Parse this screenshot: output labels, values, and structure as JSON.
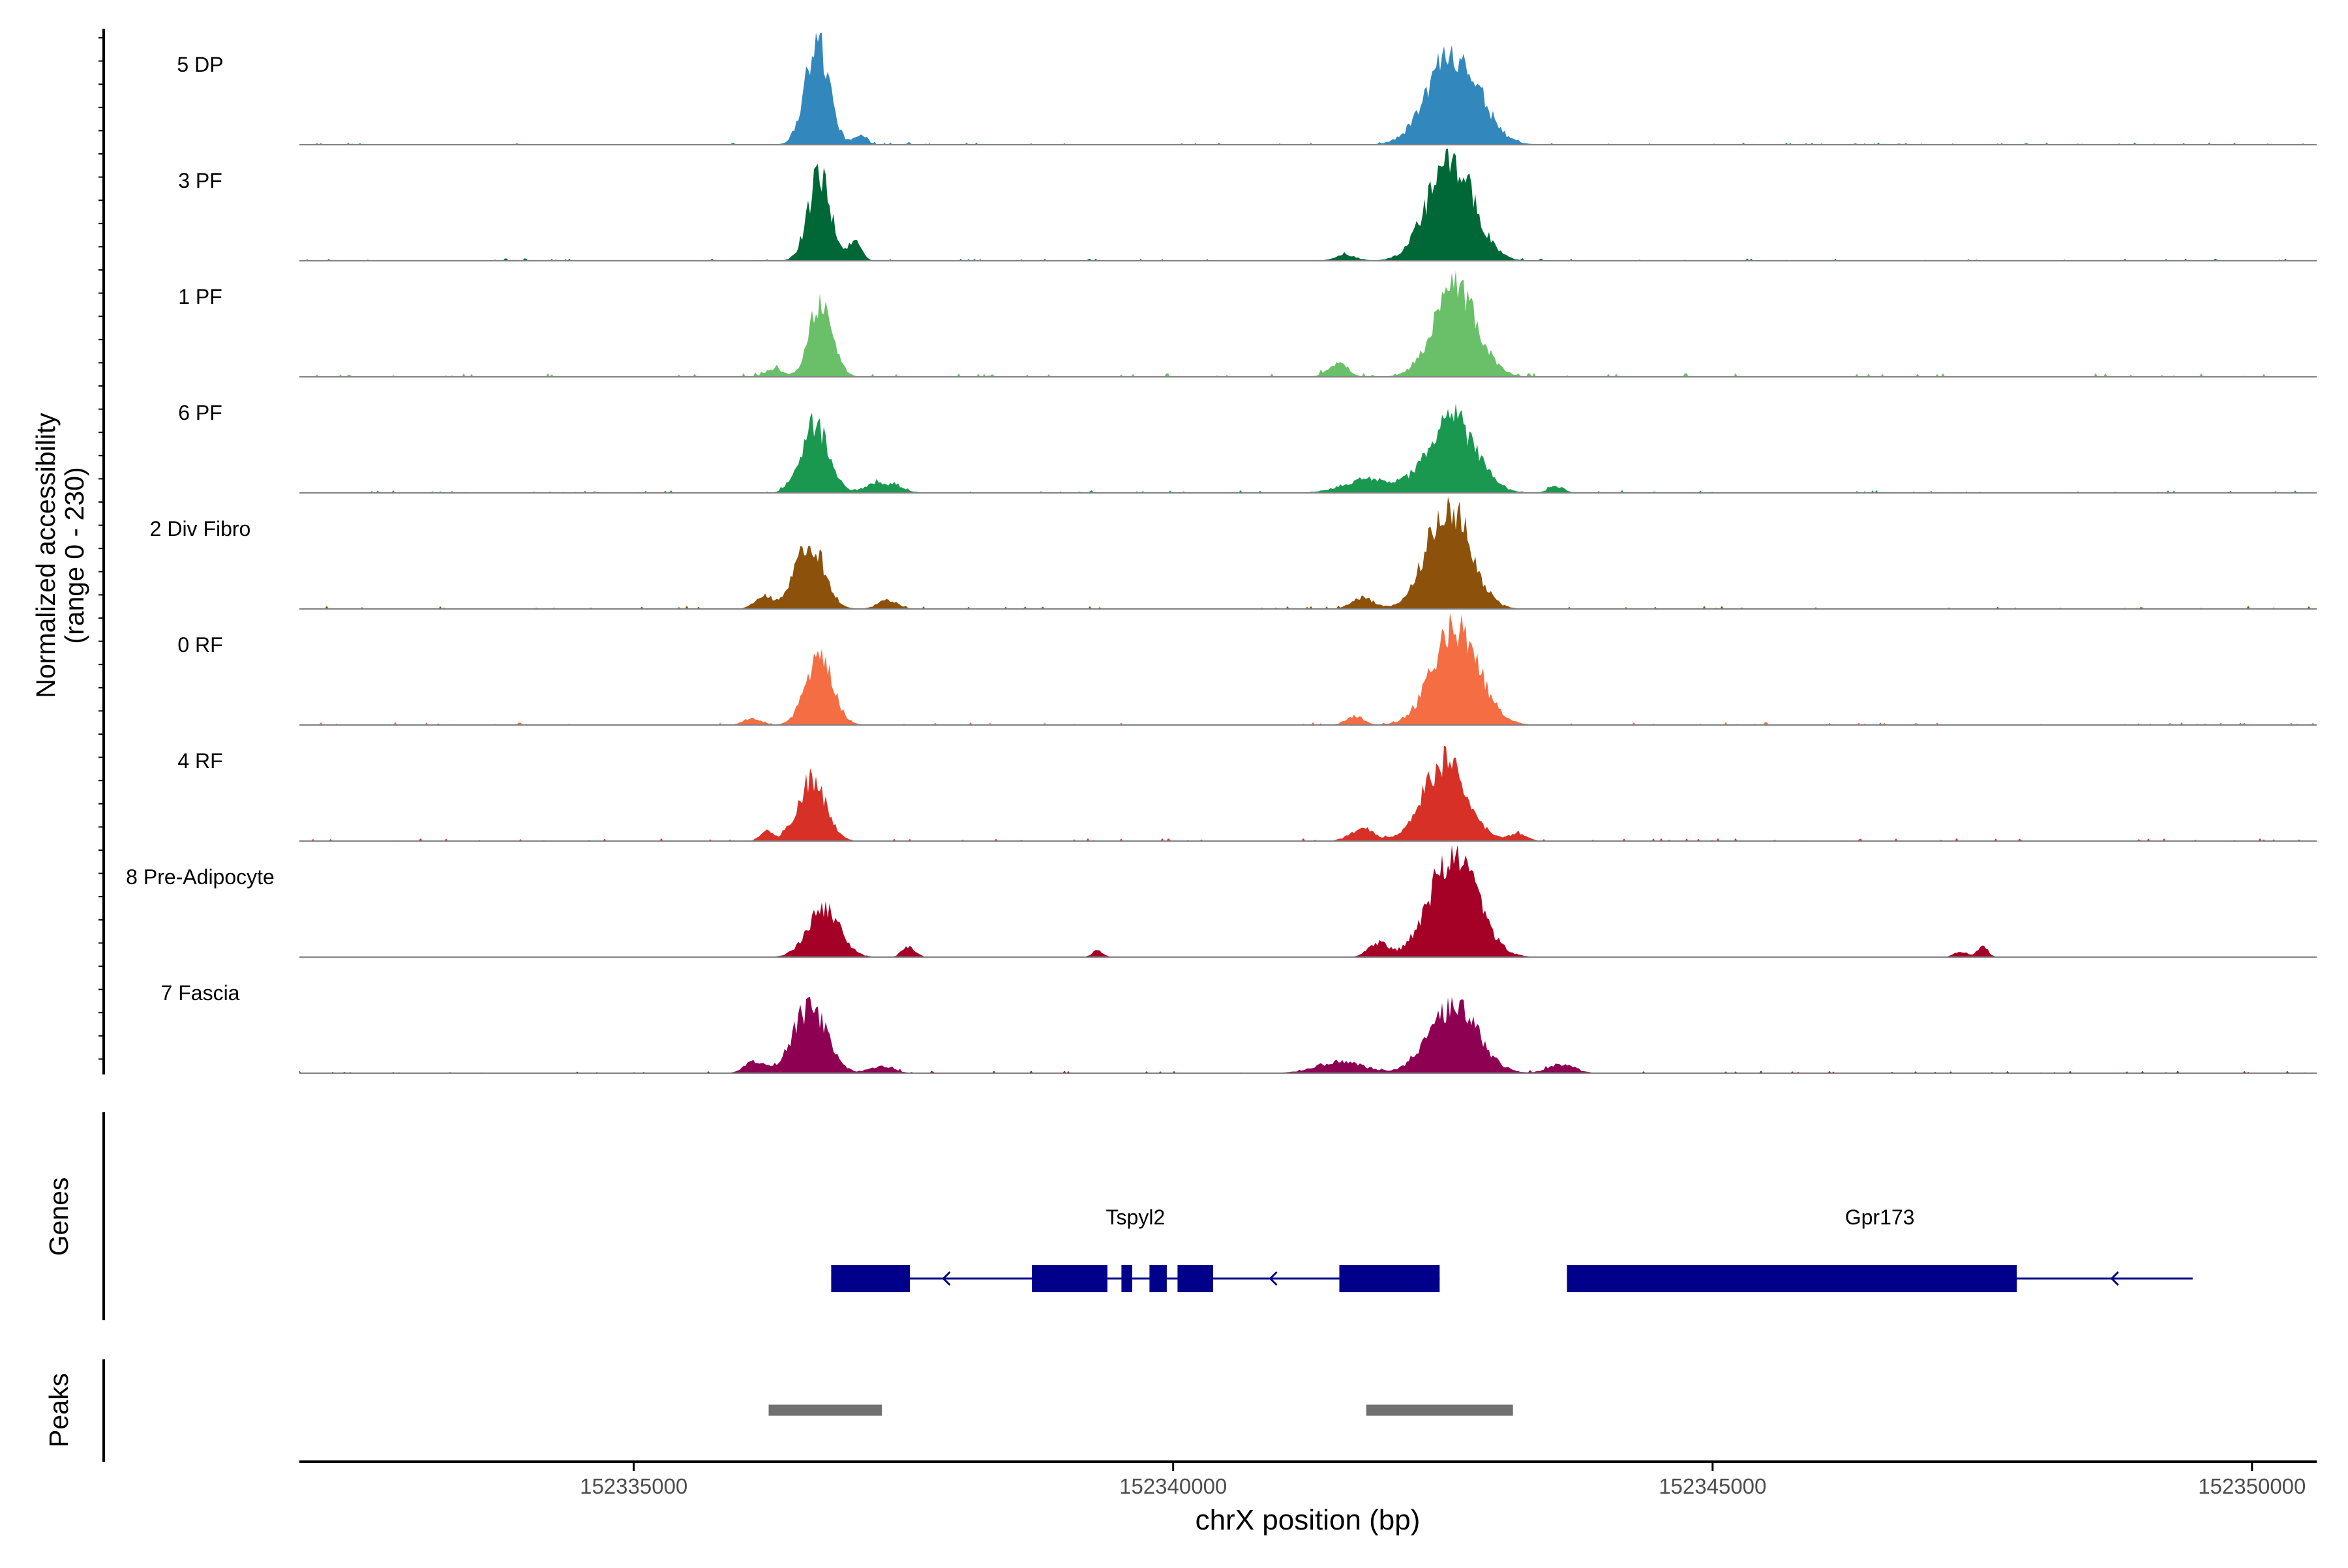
{
  "chart_data": {
    "type": "area",
    "title": "",
    "ylabel_line1": "Normalized accessibility",
    "ylabel_line2": "(range 0 - 230)",
    "xlabel": "chrX position (bp)",
    "xlim": [
      152331900,
      152350600
    ],
    "ylim": [
      0,
      230
    ],
    "x_ticks": [
      152335000,
      152340000,
      152345000,
      152350000
    ],
    "x_tick_labels": [
      "152335000",
      "152340000",
      "152345000",
      "152350000"
    ],
    "tracks": [
      {
        "name": "5 DP",
        "color": "#3288BD",
        "peaks": [
          [
            152336700,
            230,
            110
          ],
          [
            152342600,
            210,
            230
          ]
        ],
        "minor": [
          [
            152337100,
            20,
            60
          ]
        ],
        "noise": 5
      },
      {
        "name": "3 PF",
        "color": "#006837",
        "peaks": [
          [
            152336720,
            185,
            105
          ],
          [
            152342570,
            225,
            210
          ]
        ],
        "minor": [
          [
            152337050,
            40,
            60
          ],
          [
            152341600,
            12,
            100
          ]
        ],
        "noise": 5
      },
      {
        "name": "1 PF",
        "color": "#6ABF69",
        "peaks": [
          [
            152336740,
            170,
            105
          ],
          [
            152342620,
            195,
            200
          ]
        ],
        "minor": [
          [
            152336300,
            18,
            80
          ],
          [
            152341520,
            30,
            90
          ]
        ],
        "noise": 8
      },
      {
        "name": "6 PF",
        "color": "#1A9850",
        "peaks": [
          [
            152336680,
            150,
            125
          ],
          [
            152342580,
            165,
            220
          ]
        ],
        "minor": [
          [
            152337300,
            22,
            150
          ],
          [
            152341800,
            30,
            220
          ],
          [
            152343550,
            15,
            70
          ]
        ],
        "noise": 6
      },
      {
        "name": "2 Div Fibro",
        "color": "#8C510A",
        "peaks": [
          [
            152336630,
            140,
            135
          ],
          [
            152342550,
            230,
            200
          ]
        ],
        "minor": [
          [
            152336200,
            30,
            80
          ],
          [
            152337350,
            20,
            90
          ],
          [
            152341760,
            25,
            100
          ]
        ],
        "noise": 7
      },
      {
        "name": "0 RF",
        "color": "#F46D43",
        "peaks": [
          [
            152336720,
            145,
            125
          ],
          [
            152342620,
            210,
            215
          ]
        ],
        "minor": [
          [
            152336100,
            15,
            80
          ],
          [
            152341680,
            20,
            80
          ]
        ],
        "noise": 6
      },
      {
        "name": "4 RF",
        "color": "#D73027",
        "peaks": [
          [
            152336650,
            135,
            130
          ],
          [
            152342520,
            175,
            200
          ]
        ],
        "minor": [
          [
            152336230,
            20,
            60
          ],
          [
            152341750,
            28,
            110
          ],
          [
            152343200,
            18,
            80
          ]
        ],
        "noise": 6
      },
      {
        "name": "8 Pre-Adipocyte",
        "color": "#A50026",
        "peaks": [
          [
            152336760,
            105,
            150
          ],
          [
            152342600,
            225,
            220
          ]
        ],
        "minor": [
          [
            152337550,
            25,
            60
          ],
          [
            152339300,
            15,
            50
          ],
          [
            152341900,
            30,
            90
          ],
          [
            152347500,
            25,
            50
          ],
          [
            152347300,
            12,
            60
          ]
        ],
        "noise": 0
      },
      {
        "name": "7 Fascia",
        "color": "#8E0152",
        "peaks": [
          [
            152336630,
            145,
            155
          ],
          [
            152342600,
            150,
            220
          ]
        ],
        "minor": [
          [
            152336120,
            25,
            90
          ],
          [
            152337300,
            15,
            110
          ],
          [
            152341550,
            25,
            220
          ],
          [
            152343600,
            20,
            120
          ]
        ],
        "noise": 5
      }
    ],
    "genes_label": "Genes",
    "genes": [
      {
        "name": "Tspyl2",
        "start": 152336830,
        "end": 152342470,
        "strand": "-",
        "color": "#00008B",
        "exons": [
          [
            152336830,
            152337560
          ],
          [
            152338690,
            152339390
          ],
          [
            152339520,
            152339620
          ],
          [
            152339780,
            152339940
          ],
          [
            152340040,
            152340370
          ],
          [
            152341540,
            152342470
          ]
        ],
        "arrows": [
          152337870,
          152340900
        ]
      },
      {
        "name": "Gpr173",
        "start": 152343650,
        "end": 152349450,
        "strand": "-",
        "color": "#00008B",
        "exons": [
          [
            152343650,
            152347820
          ]
        ],
        "arrows": [
          152348700
        ]
      }
    ],
    "peaks_label": "Peaks",
    "peak_regions": [
      [
        152336250,
        152337300
      ],
      [
        152341790,
        152343150
      ]
    ]
  }
}
